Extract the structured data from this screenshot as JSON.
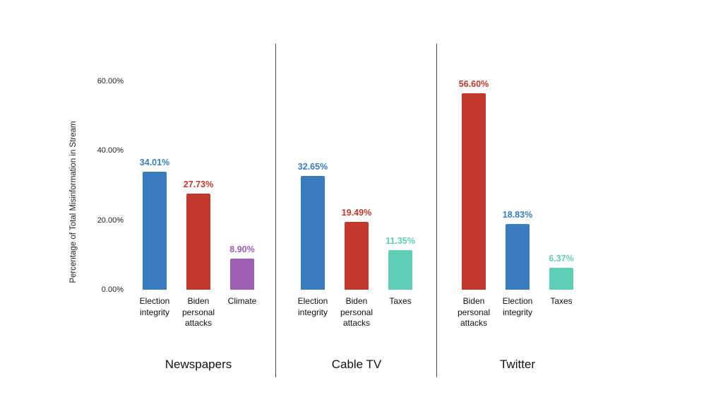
{
  "chart_data": {
    "type": "bar",
    "title": "",
    "xlabel": "",
    "ylabel": "Percentage of Total Misinformation in Stream",
    "ylim": [
      0,
      60
    ],
    "yticks": [
      "0.00%",
      "20.00%",
      "40.00%",
      "60.00%"
    ],
    "ytick_values": [
      0,
      20,
      40,
      60
    ],
    "grid": false,
    "legend": "none",
    "panels": [
      {
        "label": "Newspapers",
        "bars": [
          {
            "category": "Election\nintegrity",
            "value": 34.01,
            "display": "34.01%",
            "color": "#3a7dbf"
          },
          {
            "category": "Biden\npersonal\nattacks",
            "value": 27.73,
            "display": "27.73%",
            "color": "#c2392b"
          },
          {
            "category": "Climate",
            "value": 8.9,
            "display": "8.90%",
            "color": "#9e5fb5"
          }
        ]
      },
      {
        "label": "Cable TV",
        "bars": [
          {
            "category": "Election\nintegrity",
            "value": 32.65,
            "display": "32.65%",
            "color": "#3a7dbf"
          },
          {
            "category": "Biden\npersonal\nattacks",
            "value": 19.49,
            "display": "19.49%",
            "color": "#c2392b"
          },
          {
            "category": "Taxes",
            "value": 11.35,
            "display": "11.35%",
            "color": "#5eceb5"
          }
        ]
      },
      {
        "label": "Twitter",
        "bars": [
          {
            "category": "Biden\npersonal\nattacks",
            "value": 56.6,
            "display": "56.60%",
            "color": "#c2392b"
          },
          {
            "category": "Election\nintegrity",
            "value": 18.83,
            "display": "18.83%",
            "color": "#3a7dbf"
          },
          {
            "category": "Taxes",
            "value": 6.37,
            "display": "6.37%",
            "color": "#5eceb5"
          }
        ]
      }
    ]
  }
}
